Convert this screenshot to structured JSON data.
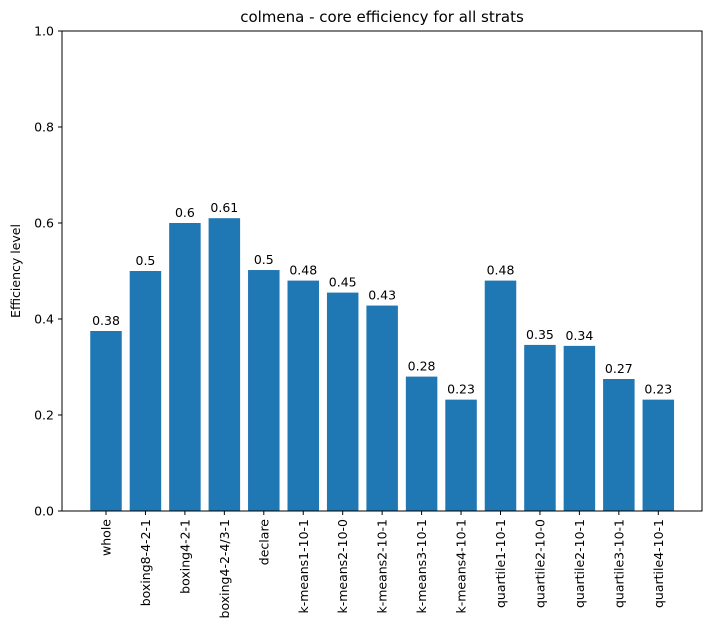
{
  "chart_data": {
    "type": "bar",
    "title": "colmena - core efficiency for all strats",
    "xlabel": "",
    "ylabel": "Efficiency level",
    "ylim": [
      0,
      1
    ],
    "yticks": [
      "0.0",
      "0.2",
      "0.4",
      "0.6",
      "0.8",
      "1.0"
    ],
    "categories": [
      "whole",
      "boxing8-4-2-1",
      "boxing4-2-1",
      "boxing4-2-4/3-1",
      "declare",
      "k-means1-10-1",
      "k-means2-10-0",
      "k-means2-10-1",
      "k-means3-10-1",
      "k-means4-10-1",
      "quartile1-10-1",
      "quartile2-10-0",
      "quartile2-10-1",
      "quartile3-10-1",
      "quartile4-10-1"
    ],
    "values": [
      0.375,
      0.5,
      0.6,
      0.61,
      0.502,
      0.48,
      0.455,
      0.428,
      0.28,
      0.232,
      0.48,
      0.346,
      0.344,
      0.275,
      0.232
    ],
    "data_labels": [
      "0.38",
      "0.5",
      "0.6",
      "0.61",
      "0.5",
      "0.48",
      "0.45",
      "0.43",
      "0.28",
      "0.23",
      "0.48",
      "0.35",
      "0.34",
      "0.27",
      "0.23"
    ],
    "bar_color": "#1f77b4",
    "grid": false,
    "legend": "none"
  }
}
